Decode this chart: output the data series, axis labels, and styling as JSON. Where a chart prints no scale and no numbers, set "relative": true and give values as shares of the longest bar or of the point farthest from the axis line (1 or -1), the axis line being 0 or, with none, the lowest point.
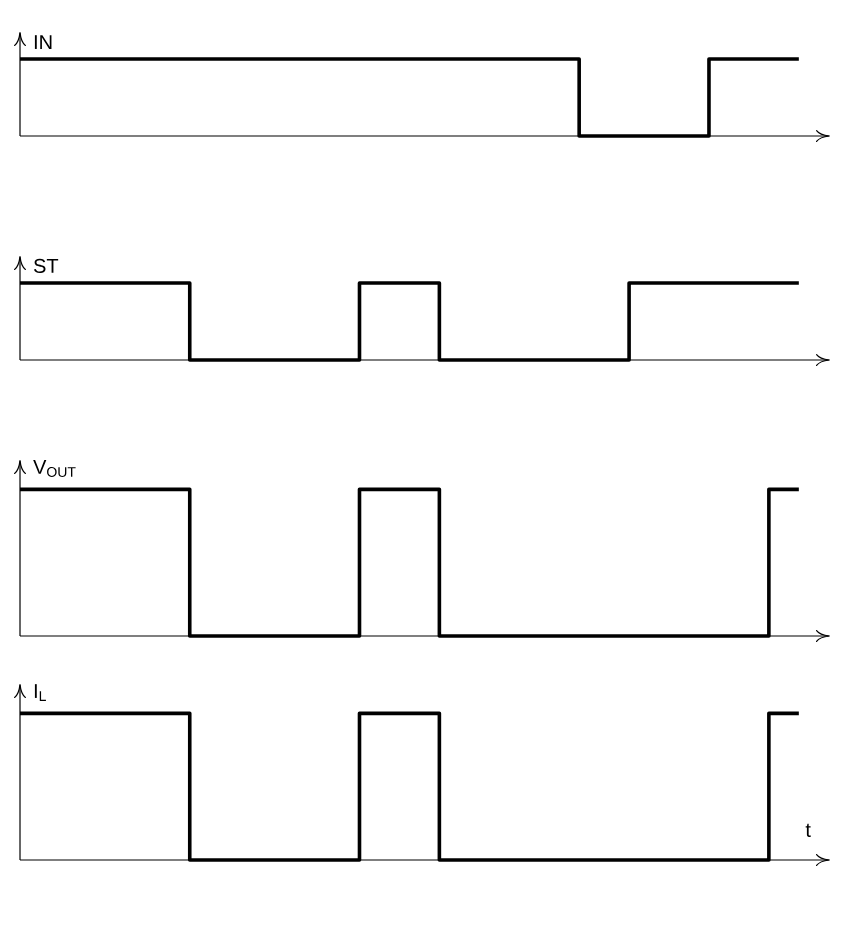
{
  "chart_data": [
    {
      "type": "step",
      "ylabel": "IN",
      "relative": true,
      "color": "#000000",
      "categories": [
        null,
        null,
        null,
        null,
        null,
        null,
        null,
        null,
        null,
        null,
        null,
        null,
        null,
        null,
        null,
        null,
        null,
        null,
        null,
        null,
        null,
        null,
        null,
        null,
        null,
        null,
        null,
        null,
        null,
        null,
        null,
        null,
        null,
        null,
        null,
        null,
        null,
        null,
        null,
        null,
        null,
        null,
        null,
        null,
        null,
        null,
        null,
        null,
        null,
        null,
        null,
        null,
        null,
        null,
        null,
        null,
        null,
        null,
        null,
        null,
        null,
        null,
        null,
        null,
        null,
        null,
        null,
        null,
        null,
        null,
        null,
        null,
        null,
        null,
        null,
        null,
        null,
        null,
        null
      ],
      "values": [
        1,
        1,
        1,
        1,
        1,
        1,
        1,
        1,
        1,
        1,
        1,
        1,
        1,
        1,
        1,
        1,
        1,
        1,
        1,
        1,
        1,
        1,
        1,
        1,
        1,
        1,
        1,
        1,
        1,
        1,
        1,
        1,
        1,
        1,
        1,
        1,
        1,
        1,
        1,
        1,
        1,
        1,
        1,
        1,
        1,
        1,
        1,
        1,
        1,
        1,
        1,
        1,
        1,
        1,
        1,
        1,
        0,
        0,
        0,
        0,
        0,
        0,
        0,
        0,
        0,
        0,
        0,
        0,
        0,
        1,
        1,
        1,
        1,
        1,
        1,
        1,
        1,
        1,
        1
      ]
    },
    {
      "type": "step",
      "ylabel": "ST",
      "relative": true,
      "color": "#000000",
      "categories": [
        null,
        null,
        null,
        null,
        null,
        null,
        null,
        null,
        null,
        null,
        null,
        null,
        null,
        null,
        null,
        null,
        null,
        null,
        null,
        null,
        null,
        null,
        null,
        null,
        null,
        null,
        null,
        null,
        null,
        null,
        null,
        null,
        null,
        null,
        null,
        null,
        null,
        null,
        null,
        null,
        null,
        null,
        null,
        null,
        null,
        null,
        null,
        null,
        null,
        null,
        null,
        null,
        null,
        null,
        null,
        null,
        null,
        null,
        null,
        null,
        null,
        null,
        null,
        null,
        null,
        null,
        null,
        null,
        null,
        null,
        null,
        null,
        null,
        null,
        null,
        null,
        null,
        null,
        null
      ],
      "values": [
        1,
        1,
        1,
        1,
        1,
        1,
        1,
        1,
        1,
        1,
        1,
        1,
        1,
        1,
        1,
        1,
        1,
        0,
        0,
        0,
        0,
        0,
        0,
        0,
        0,
        0,
        0,
        0,
        0,
        0,
        0,
        0,
        0,
        0,
        1,
        1,
        1,
        1,
        1,
        1,
        1,
        1,
        0,
        0,
        0,
        0,
        0,
        0,
        0,
        0,
        0,
        0,
        0,
        0,
        0,
        0,
        0,
        0,
        0,
        0,
        0,
        1,
        1,
        1,
        1,
        1,
        1,
        1,
        1,
        1,
        1,
        1,
        1,
        1,
        1,
        1,
        1,
        1,
        1
      ]
    },
    {
      "type": "step",
      "ylabel": "V$_{OUT}$",
      "relative": true,
      "color": "#000000",
      "categories": [
        null,
        null,
        null,
        null,
        null,
        null,
        null,
        null,
        null,
        null,
        null,
        null,
        null,
        null,
        null,
        null,
        null,
        null,
        null,
        null,
        null,
        null,
        null,
        null,
        null,
        null,
        null,
        null,
        null,
        null,
        null,
        null,
        null,
        null,
        null,
        null,
        null,
        null,
        null,
        null,
        null,
        null,
        null,
        null,
        null,
        null,
        null,
        null,
        null,
        null,
        null,
        null,
        null,
        null,
        null,
        null,
        null,
        null,
        null,
        null,
        null,
        null,
        null,
        null,
        null,
        null,
        null,
        null,
        null,
        null,
        null,
        null,
        null,
        null,
        null,
        null,
        null,
        null,
        null
      ],
      "values": [
        1,
        1,
        1,
        1,
        1,
        1,
        1,
        1,
        1,
        1,
        1,
        1,
        1,
        1,
        1,
        1,
        1,
        0,
        0,
        0,
        0,
        0,
        0,
        0,
        0,
        0,
        0,
        0,
        0,
        0,
        0,
        0,
        0,
        0,
        1,
        1,
        1,
        1,
        1,
        1,
        1,
        1,
        0,
        0,
        0,
        0,
        0,
        0,
        0,
        0,
        0,
        0,
        0,
        0,
        0,
        0,
        0,
        0,
        0,
        0,
        0,
        0,
        0,
        0,
        0,
        0,
        0,
        0,
        0,
        0,
        0,
        0,
        0,
        0,
        0,
        1,
        1,
        1,
        1
      ]
    },
    {
      "type": "step",
      "ylabel": "I$_{L}$",
      "xlabel": "t",
      "relative": true,
      "color": "#000000",
      "categories": [
        null,
        null,
        null,
        null,
        null,
        null,
        null,
        null,
        null,
        null,
        null,
        null,
        null,
        null,
        null,
        null,
        null,
        null,
        null,
        null,
        null,
        null,
        null,
        null,
        null,
        null,
        null,
        null,
        null,
        null,
        null,
        null,
        null,
        null,
        null,
        null,
        null,
        null,
        null,
        null,
        null,
        null,
        null,
        null,
        null,
        null,
        null,
        null,
        null,
        null,
        null,
        null,
        null,
        null,
        null,
        null,
        null,
        null,
        null,
        null,
        null,
        null,
        null,
        null,
        null,
        null,
        null,
        null,
        null,
        null,
        null,
        null,
        null,
        null,
        null,
        null,
        null,
        null,
        null
      ],
      "values": [
        1,
        1,
        1,
        1,
        1,
        1,
        1,
        1,
        1,
        1,
        1,
        1,
        1,
        1,
        1,
        1,
        1,
        0,
        0,
        0,
        0,
        0,
        0,
        0,
        0,
        0,
        0,
        0,
        0,
        0,
        0,
        0,
        0,
        0,
        1,
        1,
        1,
        1,
        1,
        1,
        1,
        1,
        0,
        0,
        0,
        0,
        0,
        0,
        0,
        0,
        0,
        0,
        0,
        0,
        0,
        0,
        0,
        0,
        0,
        0,
        0,
        0,
        0,
        0,
        0,
        0,
        0,
        0,
        0,
        0,
        0,
        0,
        0,
        0,
        0,
        1,
        1,
        1,
        1
      ]
    }
  ]
}
